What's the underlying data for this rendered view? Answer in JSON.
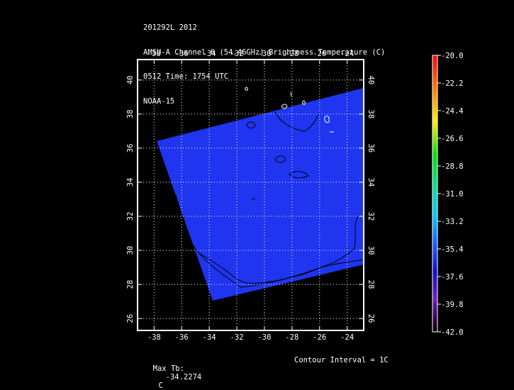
{
  "header": {
    "line1": "201292L 2012",
    "line2": "AMSU-A Channel 6 (54.46GHz) Brightness Temperature (C)",
    "line3": "0512 Time: 1754 UTC",
    "line4": "NOAA-15"
  },
  "map": {
    "lon_ticks": [
      "-38",
      "-36",
      "-34",
      "-32",
      "-30",
      "-28",
      "-26",
      "-24"
    ],
    "lat_ticks": [
      "40",
      "38",
      "36",
      "34",
      "32",
      "30",
      "28",
      "26"
    ],
    "lon_values": [
      -38,
      -36,
      -34,
      -32,
      -30,
      -28,
      -26,
      -24
    ],
    "lat_values": [
      40,
      38,
      36,
      34,
      32,
      30,
      28,
      26
    ],
    "lon_range": [
      -39.2,
      -22.8
    ],
    "lat_range": [
      25.3,
      41.2
    ],
    "swath_color": "#1f35f0",
    "grid": true
  },
  "colorbar": {
    "labels": [
      "-20.0",
      "-22.2",
      "-24.4",
      "-26.6",
      "-28.8",
      "-31.0",
      "-33.2",
      "-35.4",
      "-37.6",
      "-39.8",
      "-42.0"
    ],
    "range": [
      -42.0,
      -20.0
    ]
  },
  "footer": {
    "max_label": "Max Tb:",
    "max_value": "-34.2274",
    "max_unit": "C",
    "contour_label": "Contour Interval = 1C"
  }
}
